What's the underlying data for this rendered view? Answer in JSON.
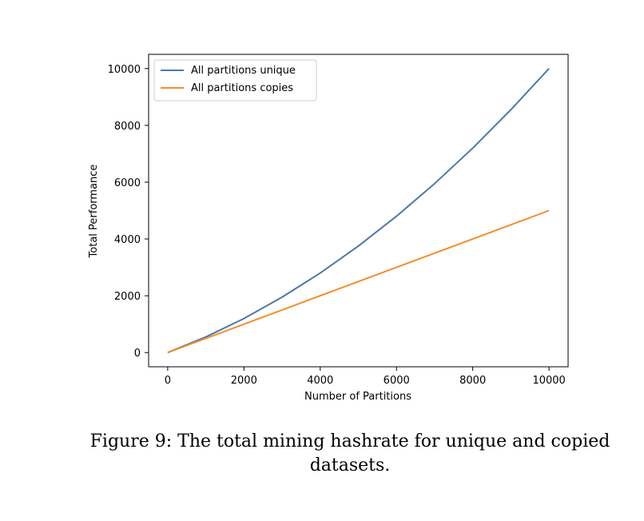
{
  "chart_data": {
    "type": "line",
    "title": "",
    "xlabel": "Number of Partitions",
    "ylabel": "Total Performance",
    "xlim": [
      -500,
      10500
    ],
    "ylim": [
      -500,
      10500
    ],
    "xticks": [
      0,
      2000,
      4000,
      6000,
      8000,
      10000
    ],
    "yticks": [
      0,
      2000,
      4000,
      6000,
      8000,
      10000
    ],
    "legend_position": "top-left",
    "grid": false,
    "series": [
      {
        "name": "All partitions unique",
        "color": "#4c78a8",
        "x": [
          0,
          1000,
          2000,
          3000,
          4000,
          5000,
          6000,
          7000,
          8000,
          9000,
          10000
        ],
        "y": [
          0,
          550,
          1200,
          1950,
          2800,
          3750,
          4800,
          5950,
          7200,
          8550,
          10000
        ]
      },
      {
        "name": "All partitions copies",
        "color": "#f28e2b",
        "x": [
          0,
          10000
        ],
        "y": [
          0,
          5000
        ]
      }
    ]
  },
  "caption": {
    "line1": "Figure 9: The total mining hashrate for unique and copied",
    "line2": "datasets."
  }
}
